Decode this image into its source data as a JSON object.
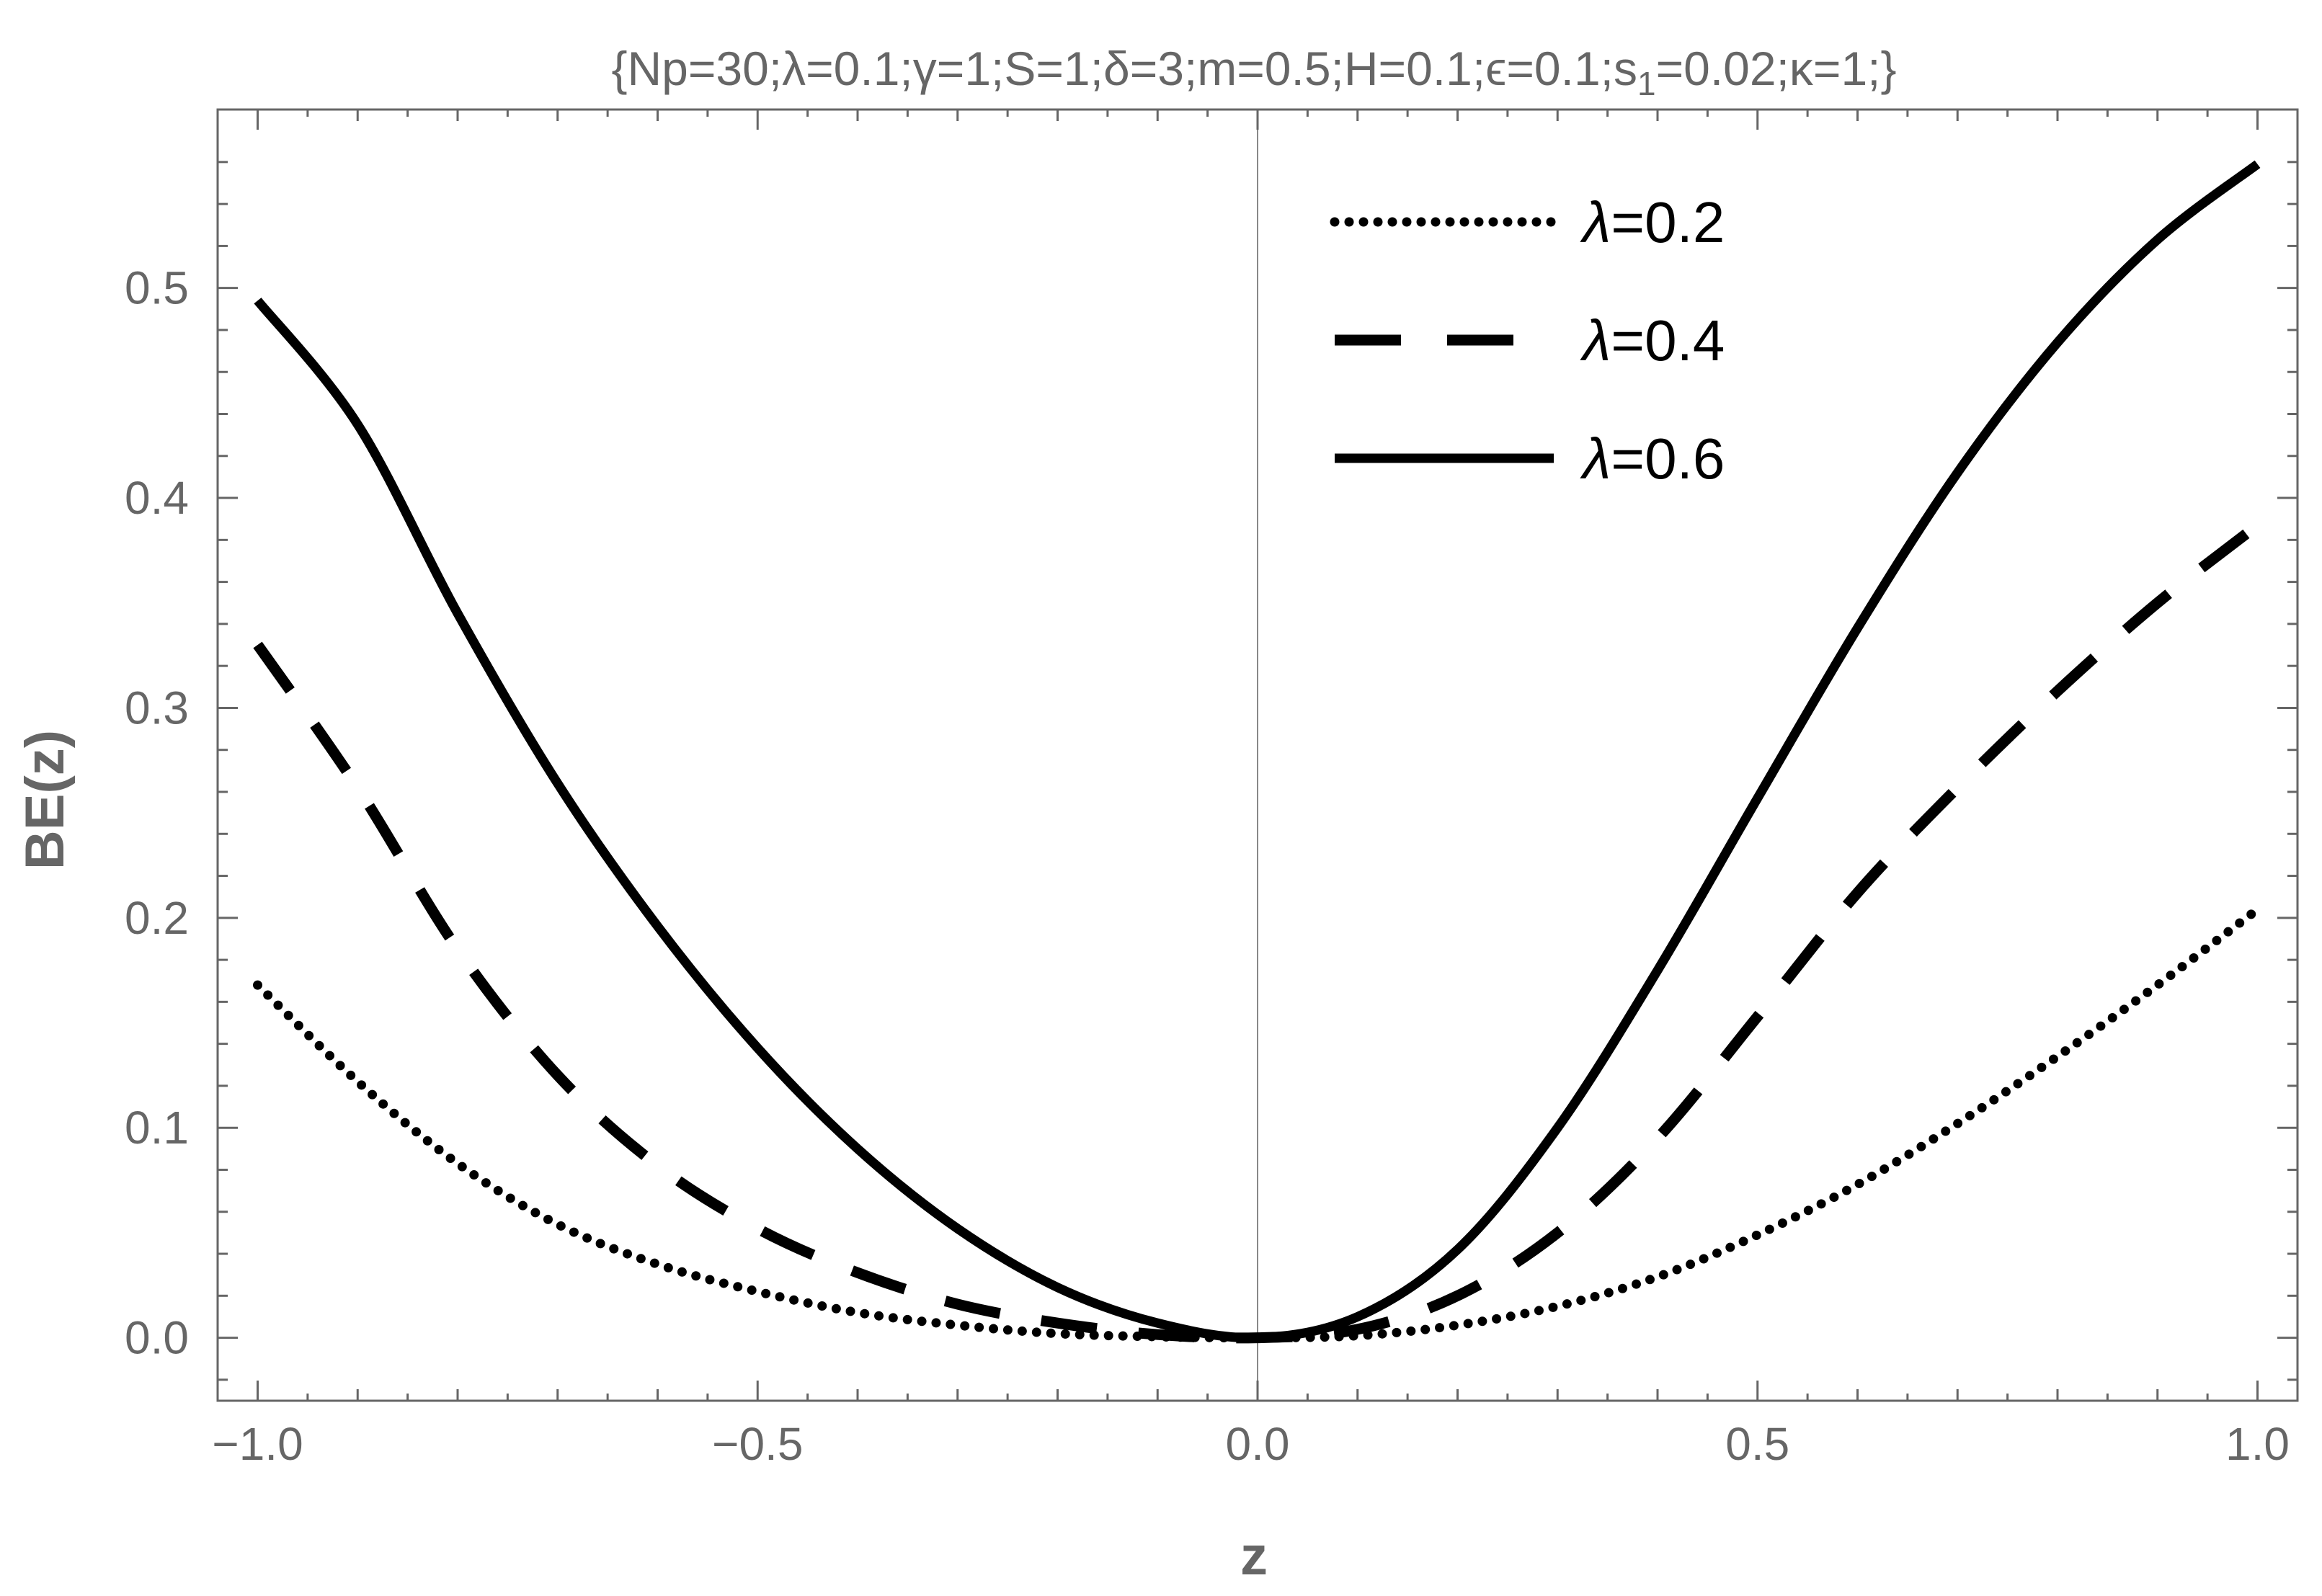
{
  "chart_data": {
    "type": "line",
    "title": "{Np=30;λ=0.1;γ=1;S=1;δ=3;m=0.5;H=0.1;ϵ=0.1;s1=0.02;κ=1;}",
    "xlabel": "z",
    "ylabel": "BE(z)",
    "xlim": [
      -1.04,
      1.04
    ],
    "ylim": [
      -0.03,
      0.585
    ],
    "x_ticks": [
      -1.0,
      -0.5,
      0.0,
      0.5,
      1.0
    ],
    "x_tick_labels": [
      "−1.0",
      "−0.5",
      "0.0",
      "0.5",
      "1.0"
    ],
    "y_ticks": [
      0.0,
      0.1,
      0.2,
      0.3,
      0.4,
      0.5
    ],
    "y_tick_labels": [
      "0.0",
      "0.1",
      "0.2",
      "0.3",
      "0.4",
      "0.5"
    ],
    "grid": false,
    "legend_position": "top-right",
    "x": [
      -1.0,
      -0.9,
      -0.8,
      -0.7,
      -0.6,
      -0.5,
      -0.4,
      -0.3,
      -0.2,
      -0.1,
      0.0,
      0.1,
      0.2,
      0.3,
      0.4,
      0.5,
      0.6,
      0.7,
      0.8,
      0.9,
      1.0
    ],
    "series": [
      {
        "name": "λ=0.2",
        "style": "dotted",
        "values": [
          0.168,
          0.122,
          0.083,
          0.054,
          0.035,
          0.022,
          0.012,
          0.006,
          0.002,
          0.0005,
          0.0,
          0.001,
          0.006,
          0.015,
          0.029,
          0.049,
          0.073,
          0.102,
          0.134,
          0.168,
          0.204
        ]
      },
      {
        "name": "λ=0.4",
        "style": "dashed",
        "values": [
          0.33,
          0.262,
          0.185,
          0.125,
          0.082,
          0.052,
          0.031,
          0.016,
          0.007,
          0.0015,
          0.0,
          0.004,
          0.02,
          0.05,
          0.095,
          0.153,
          0.212,
          0.262,
          0.308,
          0.35,
          0.387
        ]
      },
      {
        "name": "λ=0.6",
        "style": "solid",
        "values": [
          0.494,
          0.435,
          0.345,
          0.264,
          0.196,
          0.138,
          0.09,
          0.052,
          0.024,
          0.007,
          0.0,
          0.01,
          0.042,
          0.1,
          0.175,
          0.257,
          0.338,
          0.412,
          0.474,
          0.523,
          0.559
        ]
      }
    ]
  }
}
